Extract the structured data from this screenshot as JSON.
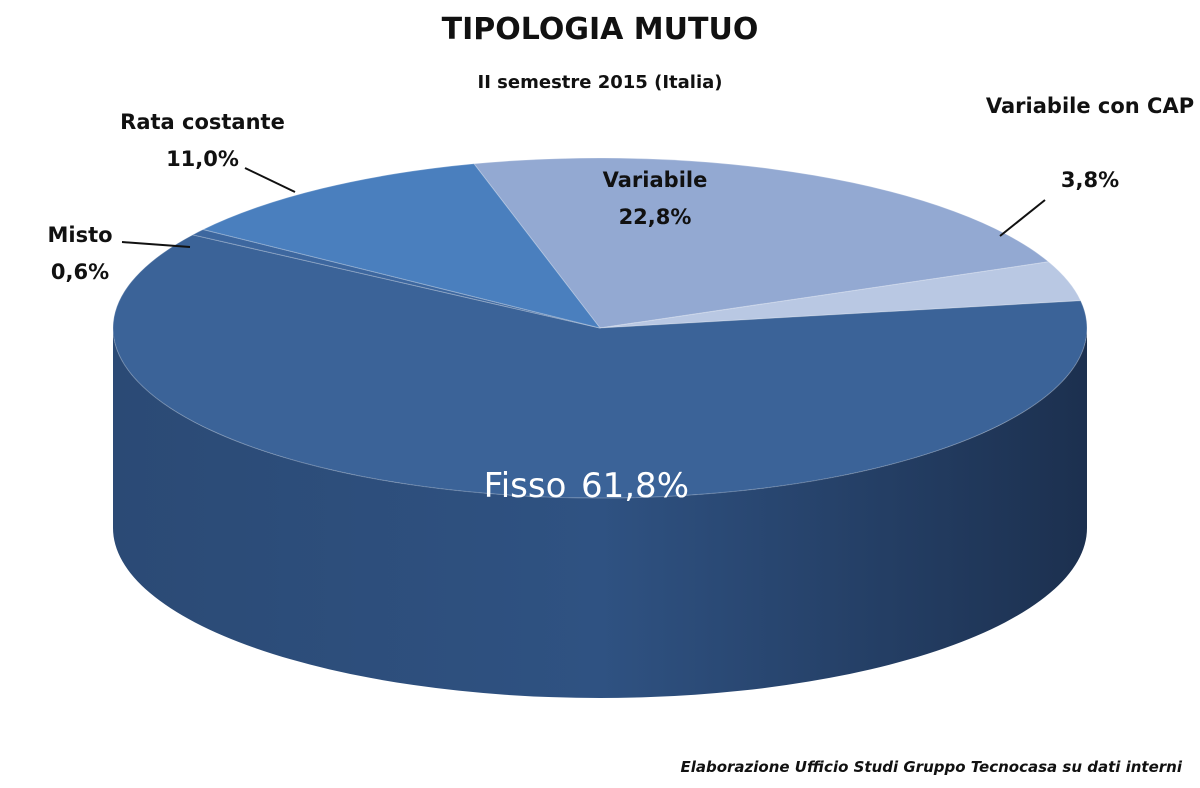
{
  "chart_data": {
    "type": "pie",
    "title": "TIPOLOGIA MUTUO",
    "subtitle": "II semestre 2015 (Italia)",
    "categories": [
      "Variabile",
      "Variabile con CAP",
      "Fisso",
      "Misto",
      "Rata costante"
    ],
    "values": [
      22.8,
      3.8,
      61.8,
      0.6,
      11.0
    ],
    "value_labels": [
      "22,8%",
      "3,8%",
      "61,8%",
      "0,6%",
      "11,0%"
    ],
    "colors": [
      "#93a9d2",
      "#b9c8e3",
      "#3b6398",
      "#3d679f",
      "#4a7fbe"
    ],
    "source": "Elaborazione Ufficio Studi Gruppo Tecnocasa su dati interni"
  }
}
